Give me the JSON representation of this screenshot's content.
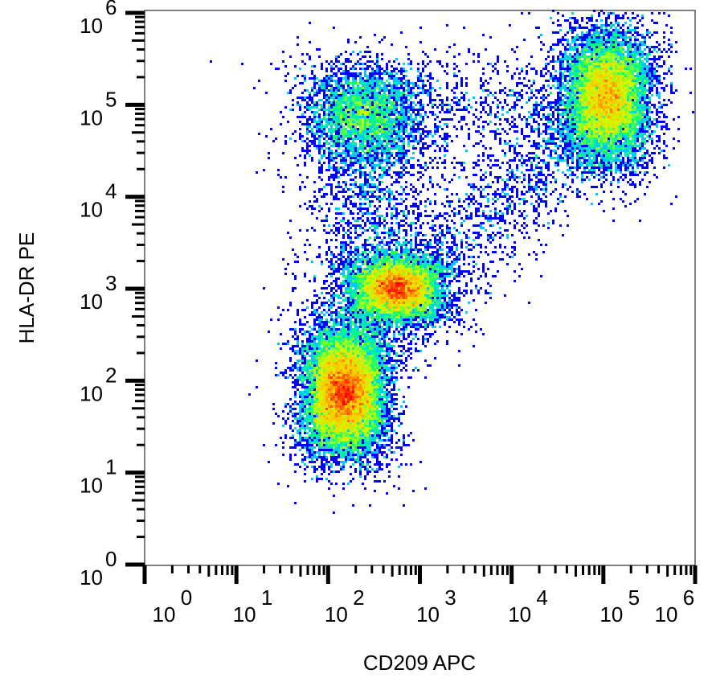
{
  "chart_data": {
    "type": "scatter",
    "style": "density dot plot (pseudocolor)",
    "xlabel": "CD209 APC",
    "ylabel": "HLA-DR PE",
    "xscale": "log",
    "yscale": "log",
    "xlim": [
      1,
      1000000
    ],
    "ylim": [
      1,
      1000000
    ],
    "x_tick_labels": [
      {
        "base": "10",
        "exp": "0"
      },
      {
        "base": "10",
        "exp": "1"
      },
      {
        "base": "10",
        "exp": "2"
      },
      {
        "base": "10",
        "exp": "3"
      },
      {
        "base": "10",
        "exp": "4"
      },
      {
        "base": "10",
        "exp": "5"
      },
      {
        "base": "10",
        "exp": "6"
      }
    ],
    "y_tick_labels": [
      {
        "base": "10",
        "exp": "0"
      },
      {
        "base": "10",
        "exp": "1"
      },
      {
        "base": "10",
        "exp": "2"
      },
      {
        "base": "10",
        "exp": "3"
      },
      {
        "base": "10",
        "exp": "4"
      },
      {
        "base": "10",
        "exp": "5"
      },
      {
        "base": "10",
        "exp": "6"
      }
    ],
    "colormap": [
      "#0000ff",
      "#00c8ff",
      "#00ff80",
      "#c8ff00",
      "#ffc800",
      "#ff0000"
    ],
    "populations": [
      {
        "center_x": 150,
        "center_y": 75,
        "log_sd_x": 0.18,
        "log_sd_y": 0.33,
        "relative_size": 0.36,
        "peak_density": "high"
      },
      {
        "center_x": 550,
        "center_y": 1000,
        "log_sd_x": 0.2,
        "log_sd_y": 0.17,
        "relative_size": 0.2,
        "peak_density": "high"
      },
      {
        "center_x": 110000,
        "center_y": 120000,
        "log_sd_x": 0.19,
        "log_sd_y": 0.36,
        "relative_size": 0.22,
        "peak_density": "medium"
      },
      {
        "center_x": 230,
        "center_y": 80000,
        "log_sd_x": 0.28,
        "log_sd_y": 0.28,
        "relative_size": 0.08,
        "peak_density": "low"
      }
    ],
    "grid": false,
    "legend": "none"
  }
}
